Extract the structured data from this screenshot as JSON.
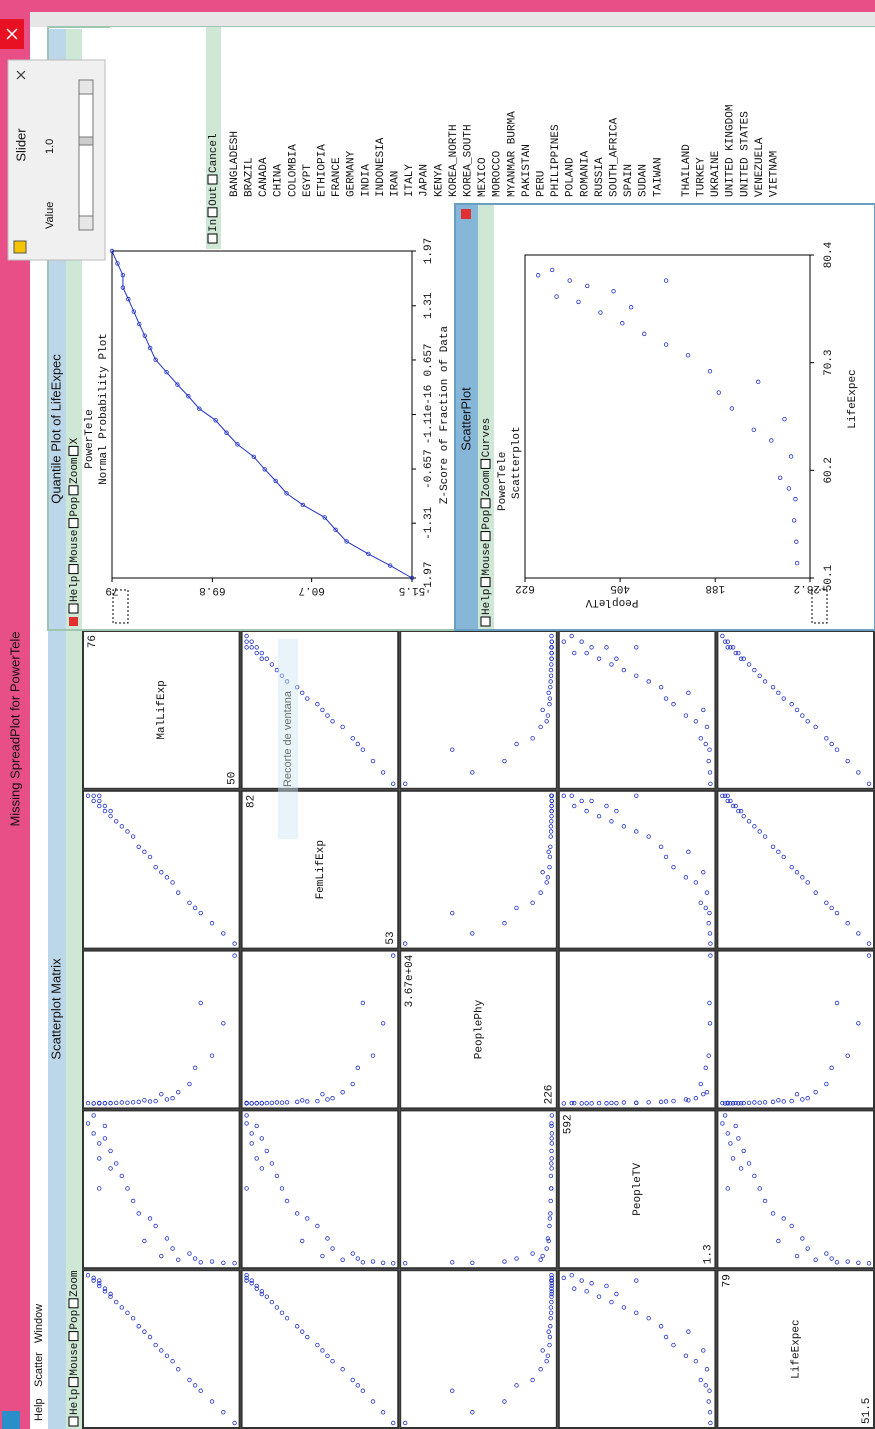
{
  "window": {
    "title": "Missing SpreadPlot for PowerTele",
    "menu": [
      "Help",
      "Scatter",
      "Window"
    ]
  },
  "overlay_text": "Recorte de ventana",
  "matrix": {
    "title": "Scatterplot Matrix",
    "controls": [
      "Help",
      "Mouse",
      "Pop",
      "Zoom"
    ],
    "variables": [
      {
        "name": "MalLifExp",
        "range": [
          50,
          76
        ]
      },
      {
        "name": "FemLifExp",
        "range": [
          53,
          82
        ]
      },
      {
        "name": "PeoplePhy",
        "range": [
          226,
          {
            "value": 36700,
            "label": "3.67e+04"
          }
        ]
      },
      {
        "name": "PeopleTV",
        "range": [
          1.3,
          592
        ]
      },
      {
        "name": "LifeExpec",
        "range": [
          51.5,
          79
        ]
      }
    ],
    "records": [
      [
        50,
        53,
        36700,
        1.3,
        51.5
      ],
      [
        52,
        55,
        20000,
        3,
        53.5
      ],
      [
        54,
        57,
        12000,
        8,
        55.5
      ],
      [
        56,
        59,
        25000,
        5,
        57.5
      ],
      [
        57,
        60,
        9000,
        20,
        58.5
      ],
      [
        58,
        61,
        5000,
        40,
        59.5
      ],
      [
        60,
        63,
        3000,
        15,
        61.5
      ],
      [
        61,
        65,
        1500,
        60,
        63
      ],
      [
        62,
        66,
        1200,
        100,
        64
      ],
      [
        63,
        67,
        2500,
        30,
        65
      ],
      [
        64,
        68,
        800,
        150,
        66
      ],
      [
        65,
        70,
        700,
        180,
        67.5
      ],
      [
        66,
        71,
        1000,
        90,
        68.5
      ],
      [
        67,
        72,
        600,
        200,
        69.5
      ],
      [
        68,
        74,
        500,
        250,
        71
      ],
      [
        69,
        75,
        400,
        300,
        72
      ],
      [
        70,
        76,
        450,
        350,
        73
      ],
      [
        71,
        77,
        350,
        400,
        74
      ],
      [
        72,
        78,
        300,
        450,
        75
      ],
      [
        72,
        79,
        280,
        380,
        75.5
      ],
      [
        73,
        79,
        250,
        500,
        76
      ],
      [
        73,
        80,
        300,
        550,
        76.5
      ],
      [
        74,
        80,
        260,
        420,
        77
      ],
      [
        74,
        81,
        240,
        480,
        77.5
      ],
      [
        75,
        81,
        230,
        520,
        78
      ],
      [
        75,
        82,
        226,
        592,
        78.5
      ],
      [
        76,
        82,
        300,
        560,
        79
      ],
      [
        74,
        82,
        350,
        300,
        78
      ]
    ]
  },
  "quantile": {
    "title": "Quantile Plot of LifeExpec",
    "controls": [
      "Help",
      "Mouse",
      "Pop",
      "Zoom",
      "X"
    ],
    "subtitle": "PowerTele",
    "plot_title": "Normal Probability Plot",
    "xlabel": "Z-Score of Fraction of Data",
    "xlim": [
      -1.97,
      1.97
    ],
    "xticks": [
      -1.97,
      -1.31,
      -0.657,
      -1.11e-16,
      0.657,
      1.31,
      1.97
    ],
    "ylim": [
      51.5,
      79
    ],
    "yticks": [
      51.5,
      60.7,
      69.8,
      79
    ],
    "z": [
      -1.97,
      -1.82,
      -1.68,
      -1.53,
      -1.39,
      -1.24,
      -1.09,
      -0.95,
      -0.8,
      -0.66,
      -0.51,
      -0.36,
      -0.22,
      -0.07,
      0.07,
      0.22,
      0.36,
      0.51,
      0.66,
      0.8,
      0.95,
      1.09,
      1.24,
      1.39,
      1.53,
      1.68,
      1.82,
      1.97
    ],
    "values": [
      51.5,
      53.5,
      55.5,
      57.5,
      58.5,
      59.5,
      61.5,
      63,
      64,
      65,
      66,
      67.5,
      68.5,
      69.5,
      71,
      72,
      73,
      74,
      75,
      75.5,
      76,
      76.5,
      77,
      77.5,
      78,
      78,
      78.5,
      79
    ],
    "list_controls": [
      "In",
      "Out",
      "Cancel"
    ],
    "list": [
      "BANGLADESH",
      "BRAZIL",
      "CANADA",
      "CHINA",
      "COLOMBIA",
      "EGYPT",
      "ETHIOPIA",
      "FRANCE",
      "GERMANY",
      "INDIA",
      "INDONESIA",
      "IRAN",
      "ITALY",
      "JAPAN",
      "KENYA",
      "KOREA_NORTH",
      "KOREA_SOUTH",
      "MEXICO",
      "MOROCCO",
      "MYANMAR BURMA",
      "PAKISTAN",
      "PERU",
      "PHILIPPINES",
      "POLAND",
      "ROMANIA",
      "RUSSIA",
      "SOUTH_AFRICA",
      "SPAIN",
      "SUDAN",
      "TAIWAN",
      "THAILAND",
      "TURKEY",
      "UKRAINE",
      "UNITED KINGDOM",
      "UNITED STATES",
      "VENEZUELA",
      "VIETNAM"
    ]
  },
  "scatter": {
    "title": "ScatterPlot",
    "controls": [
      "Help",
      "Mouse",
      "Pop",
      "Zoom",
      "Curves"
    ],
    "subtitle": "PowerTele",
    "plot_title": "Scatterplot",
    "xlabel": "LifeExpec",
    "ylabel": "PeopleTV",
    "xlim": [
      50.1,
      80.4
    ],
    "xticks": [
      50.1,
      60.2,
      70.3,
      80.4
    ],
    "ylim": [
      -28.2,
      622
    ],
    "yticks": [
      -28.2,
      188,
      405,
      622
    ]
  },
  "slider": {
    "title": "Slider",
    "label": "Value",
    "value": "1.0"
  }
}
